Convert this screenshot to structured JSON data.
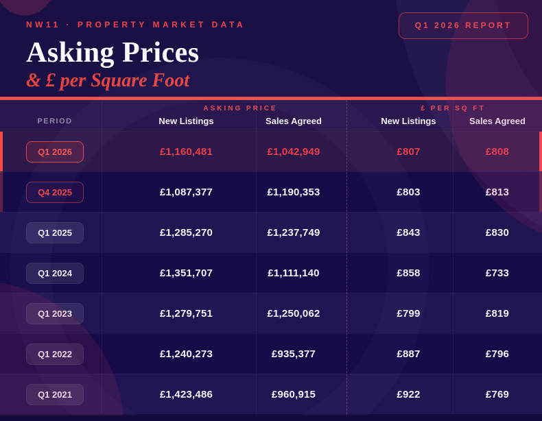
{
  "page": {
    "background": "#1b1046",
    "accent_red": "#ef4449"
  },
  "header": {
    "eyebrow": "NW11 · PROPERTY MARKET DATA",
    "title": "Asking Prices",
    "subtitle": "& £ per Square Foot",
    "report_button": "Q1 2026 REPORT"
  },
  "table": {
    "period_header": "PERIOD",
    "groups": [
      {
        "label": "ASKING PRICE",
        "columns": [
          "New Listings",
          "Sales Agreed"
        ]
      },
      {
        "label": "£ PER SQ FT",
        "columns": [
          "New Listings",
          "Sales Agreed"
        ]
      }
    ],
    "rows": [
      {
        "period": "Q1 2026",
        "asking_new": "£1,160,481",
        "asking_agreed": "£1,042,949",
        "psf_new": "£807",
        "psf_agreed": "£808",
        "variant": "current"
      },
      {
        "period": "Q4 2025",
        "asking_new": "£1,087,377",
        "asking_agreed": "£1,190,353",
        "psf_new": "£803",
        "psf_agreed": "£813",
        "variant": "previous"
      },
      {
        "period": "Q1 2025",
        "asking_new": "£1,285,270",
        "asking_agreed": "£1,237,749",
        "psf_new": "£843",
        "psf_agreed": "£830",
        "variant": "light"
      },
      {
        "period": "Q1 2024",
        "asking_new": "£1,351,707",
        "asking_agreed": "£1,111,140",
        "psf_new": "£858",
        "psf_agreed": "£733",
        "variant": "dark"
      },
      {
        "period": "Q1 2023",
        "asking_new": "£1,279,751",
        "asking_agreed": "£1,250,062",
        "psf_new": "£799",
        "psf_agreed": "£819",
        "variant": "light"
      },
      {
        "period": "Q1 2022",
        "asking_new": "£1,240,273",
        "asking_agreed": "£935,377",
        "psf_new": "£887",
        "psf_agreed": "£796",
        "variant": "dark"
      },
      {
        "period": "Q1 2021",
        "asking_new": "£1,423,486",
        "asking_agreed": "£960,915",
        "psf_new": "£922",
        "psf_agreed": "£769",
        "variant": "light"
      }
    ]
  },
  "chart_data": {
    "type": "table",
    "title": "Asking Prices & £ per Square Foot — NW11 Property Market Data (Q1 2026 Report)",
    "column_groups": [
      "Asking Price",
      "£ per Sq Ft"
    ],
    "columns": [
      "Period",
      "Asking Price New Listings",
      "Asking Price Sales Agreed",
      "£/sqft New Listings",
      "£/sqft Sales Agreed"
    ],
    "rows": [
      [
        "Q1 2026",
        1160481,
        1042949,
        807,
        808
      ],
      [
        "Q4 2025",
        1087377,
        1190353,
        803,
        813
      ],
      [
        "Q1 2025",
        1285270,
        1237749,
        843,
        830
      ],
      [
        "Q1 2024",
        1351707,
        1111140,
        858,
        733
      ],
      [
        "Q1 2023",
        1279751,
        1250062,
        799,
        819
      ],
      [
        "Q1 2022",
        1240273,
        935377,
        887,
        796
      ],
      [
        "Q1 2021",
        1423486,
        960915,
        922,
        769
      ]
    ],
    "highlighted_row": "Q1 2026"
  }
}
